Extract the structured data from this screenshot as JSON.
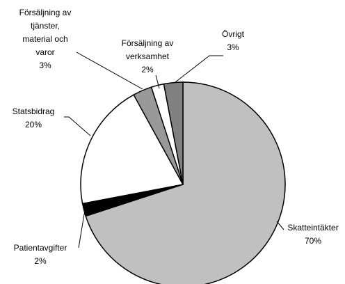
{
  "chart_data": {
    "type": "pie",
    "categories": [
      "Skatteintäkter",
      "Patientavgifter",
      "Statsbidrag",
      "Försäljning av tjänster, material och varor",
      "Försäljning av verksamhet",
      "Övrigt"
    ],
    "values": [
      70,
      2,
      20,
      3,
      2,
      3
    ],
    "value_labels": [
      "70%",
      "2%",
      "20%",
      "3%",
      "2%",
      "3%"
    ],
    "colors": [
      "#c0c0c0",
      "#000000",
      "#ffffff",
      "#999999",
      "#ffffff",
      "#808080"
    ]
  }
}
